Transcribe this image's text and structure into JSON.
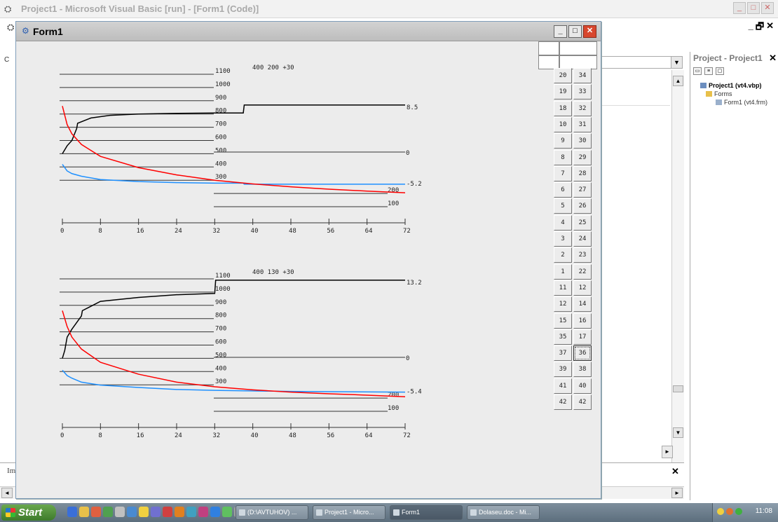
{
  "ide": {
    "title": "Project1 - Microsoft Visual Basic [run] - [Form1 (Code)]",
    "project_explorer": {
      "title": "Project - Project1",
      "tree": {
        "project": "Project1 (vt4.vbp)",
        "folder": "Forms",
        "form": "Form1 (vt4.frm)"
      }
    },
    "immediate_label": "Im",
    "left_tab_letter": "C"
  },
  "form": {
    "title": "Form1",
    "buttons": {
      "left_col": [
        "20",
        "19",
        "18",
        "10",
        "9",
        "8",
        "7",
        "6",
        "5",
        "4",
        "3",
        "2",
        "1",
        "11",
        "12",
        "15",
        "35",
        "37",
        "39",
        "41",
        "42"
      ],
      "right_col": [
        "34",
        "33",
        "32",
        "31",
        "30",
        "29",
        "28",
        "27",
        "26",
        "25",
        "24",
        "23",
        "22",
        "12",
        "14",
        "16",
        "17",
        "36",
        "38",
        "40",
        "42"
      ],
      "pressed_right_index": 17
    }
  },
  "chart_data": [
    {
      "type": "line",
      "title": "400 200 +30",
      "level_labels": [
        "1100",
        "1000",
        "900",
        "800",
        "700",
        "600",
        "500",
        "400",
        "300",
        "200",
        "100"
      ],
      "x_ticks": [
        "0",
        "8",
        "16",
        "24",
        "32",
        "40",
        "48",
        "56",
        "64",
        "72"
      ],
      "xlim": [
        0,
        72
      ],
      "right_labels": {
        "black_end": "8.5",
        "zero_line": "0",
        "blue_end": "-5.2"
      },
      "series": [
        {
          "color": "#000000",
          "x": [
            0,
            1,
            2,
            3,
            3.2,
            6,
            10,
            16,
            24,
            32,
            38,
            38.2,
            72
          ],
          "y": [
            500,
            560,
            600,
            690,
            730,
            770,
            790,
            800,
            805,
            808,
            808,
            868,
            868
          ]
        },
        {
          "color": "#1e90ff",
          "x": [
            0,
            1,
            2,
            4,
            8,
            16,
            24,
            32,
            38,
            38.2,
            72
          ],
          "y": [
            420,
            370,
            350,
            330,
            305,
            290,
            282,
            278,
            278,
            270,
            270
          ]
        },
        {
          "color": "#ff0000",
          "x": [
            0,
            1,
            2,
            4,
            8,
            16,
            24,
            32,
            40,
            48,
            56,
            64,
            72
          ],
          "y": [
            860,
            720,
            650,
            570,
            480,
            395,
            340,
            300,
            272,
            250,
            232,
            218,
            205
          ]
        }
      ]
    },
    {
      "type": "line",
      "title": "400 130 +30",
      "level_labels": [
        "1100",
        "1000",
        "900",
        "800",
        "700",
        "600",
        "500",
        "400",
        "300",
        "200",
        "100"
      ],
      "x_ticks": [
        "0",
        "8",
        "16",
        "24",
        "32",
        "40",
        "48",
        "56",
        "64",
        "72"
      ],
      "xlim": [
        0,
        72
      ],
      "right_labels": {
        "black_end": "13.2",
        "zero_line": "0",
        "blue_end": "-5.4"
      },
      "series": [
        {
          "color": "#000000",
          "x": [
            0,
            0.5,
            1,
            2,
            4,
            4.2,
            8,
            16,
            24,
            32,
            32.2,
            72
          ],
          "y": [
            500,
            560,
            660,
            720,
            820,
            860,
            930,
            960,
            980,
            990,
            1090,
            1090
          ]
        },
        {
          "color": "#1e90ff",
          "x": [
            0,
            1,
            2,
            4,
            8,
            16,
            24,
            32,
            48,
            72
          ],
          "y": [
            410,
            370,
            350,
            320,
            298,
            280,
            265,
            258,
            250,
            245
          ]
        },
        {
          "color": "#ff0000",
          "x": [
            0,
            1,
            2,
            4,
            8,
            16,
            24,
            32,
            40,
            48,
            56,
            64,
            72
          ],
          "y": [
            860,
            740,
            660,
            570,
            470,
            380,
            320,
            285,
            262,
            245,
            232,
            222,
            210
          ]
        }
      ]
    }
  ],
  "taskbar": {
    "start": "Start",
    "tasks": [
      "(D:\\AVTUHOV) ...",
      "Project1 - Micro...",
      "Form1",
      "Dolaseu.doc - Mi..."
    ],
    "active_index": 2,
    "clock": "11:08"
  }
}
